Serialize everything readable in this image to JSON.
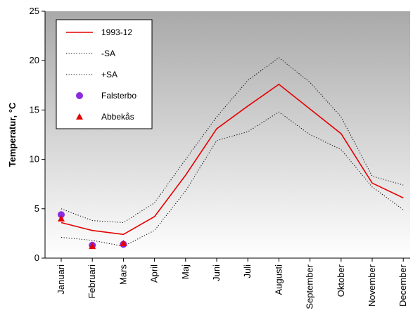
{
  "chart_data": {
    "type": "line",
    "title": "",
    "xlabel": "",
    "ylabel": "Temperatur, °C",
    "ylim": [
      0,
      25
    ],
    "yticks": [
      0,
      5,
      10,
      15,
      20,
      25
    ],
    "grid": false,
    "legend_position": "top-left",
    "background": "gradient gray to white (top to bottom)",
    "categories": [
      "Januari",
      "Februari",
      "Mars",
      "April",
      "Maj",
      "Juni",
      "Juli",
      "Augusti",
      "September",
      "Oktober",
      "November",
      "December"
    ],
    "series": [
      {
        "name": "1993-12",
        "style": "solid",
        "color": "#e60000",
        "values": [
          3.6,
          2.8,
          2.4,
          4.2,
          8.4,
          13.1,
          15.4,
          17.6,
          15.1,
          12.6,
          7.6,
          6.1
        ]
      },
      {
        "name": "-SA",
        "style": "dotted",
        "color": "#000000",
        "values": [
          2.1,
          1.8,
          1.2,
          2.8,
          6.8,
          11.9,
          12.8,
          14.8,
          12.5,
          11.0,
          7.2,
          4.9
        ]
      },
      {
        "name": "+SA",
        "style": "dotted",
        "color": "#000000",
        "values": [
          5.0,
          3.8,
          3.6,
          5.6,
          10.0,
          14.3,
          18.0,
          20.3,
          17.8,
          14.3,
          8.3,
          7.4
        ]
      },
      {
        "name": "Falsterbo",
        "style": "marker-circle",
        "color": "#8a2be2",
        "points": [
          {
            "x": "Januari",
            "y": 4.4
          },
          {
            "x": "Februari",
            "y": 1.3
          },
          {
            "x": "Mars",
            "y": 1.4
          }
        ]
      },
      {
        "name": "Abbekås",
        "style": "marker-triangle",
        "color": "#e60000",
        "points": [
          {
            "x": "Januari",
            "y": 4.0
          },
          {
            "x": "Februari",
            "y": 1.2
          },
          {
            "x": "Mars",
            "y": 1.5
          }
        ]
      }
    ]
  }
}
